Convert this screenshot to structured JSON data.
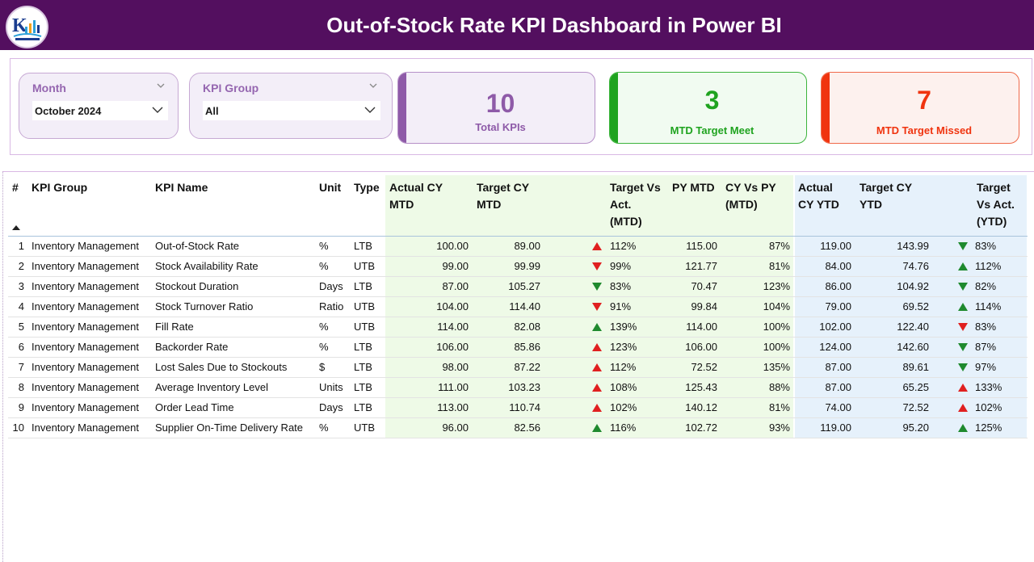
{
  "header": {
    "title": "Out-of-Stock Rate KPI Dashboard in Power BI",
    "logo_icon": "company-logo-icon",
    "color": "#530f5f"
  },
  "filters": {
    "month": {
      "label": "Month",
      "value": "October 2024"
    },
    "kpi_group": {
      "label": "KPI Group",
      "value": "All"
    }
  },
  "cards": {
    "total": {
      "value": "10",
      "label": "Total KPIs",
      "color": "#8e5aa8"
    },
    "met": {
      "value": "3",
      "label": "MTD Target Meet",
      "color": "#1fa31f"
    },
    "missed": {
      "value": "7",
      "label": "MTD Target Missed",
      "color": "#f0340f"
    }
  },
  "table": {
    "headers": {
      "num": "#",
      "kpi_group": "KPI Group",
      "kpi_name": "KPI Name",
      "unit": "Unit",
      "type": "Type",
      "actual_mtd_1": "Actual CY",
      "actual_mtd_2": "MTD",
      "target_mtd_1": "Target CY",
      "target_mtd_2": "MTD",
      "tva_mtd_1": "Target Vs",
      "tva_mtd_2": "Act.",
      "tva_mtd_3": "(MTD)",
      "py_mtd": "PY MTD",
      "cy_py_1": "CY Vs PY",
      "cy_py_2": "(MTD)",
      "actual_ytd_1": "Actual",
      "actual_ytd_2": "CY YTD",
      "target_ytd_1": "Target CY",
      "target_ytd_2": "YTD",
      "tva_ytd_1": "Target",
      "tva_ytd_2": "Vs Act.",
      "tva_ytd_3": "(YTD)"
    },
    "rows": [
      {
        "num": "1",
        "group": "Inventory Management",
        "name": "Out-of-Stock Rate",
        "unit": "%",
        "type": "LTB",
        "actual_mtd": "100.00",
        "target_mtd": "89.00",
        "mtd_icon": "up-red",
        "tva_mtd": "112%",
        "py_mtd": "115.00",
        "cy_vs_py": "87%",
        "actual_ytd": "119.00",
        "target_ytd": "143.99",
        "ytd_icon": "down-green",
        "tva_ytd": "83%"
      },
      {
        "num": "2",
        "group": "Inventory Management",
        "name": "Stock Availability Rate",
        "unit": "%",
        "type": "UTB",
        "actual_mtd": "99.00",
        "target_mtd": "99.99",
        "mtd_icon": "down-red",
        "tva_mtd": "99%",
        "py_mtd": "121.77",
        "cy_vs_py": "81%",
        "actual_ytd": "84.00",
        "target_ytd": "74.76",
        "ytd_icon": "up-green",
        "tva_ytd": "112%"
      },
      {
        "num": "3",
        "group": "Inventory Management",
        "name": "Stockout Duration",
        "unit": "Days",
        "type": "LTB",
        "actual_mtd": "87.00",
        "target_mtd": "105.27",
        "mtd_icon": "down-green",
        "tva_mtd": "83%",
        "py_mtd": "70.47",
        "cy_vs_py": "123%",
        "actual_ytd": "86.00",
        "target_ytd": "104.92",
        "ytd_icon": "down-green",
        "tva_ytd": "82%"
      },
      {
        "num": "4",
        "group": "Inventory Management",
        "name": "Stock Turnover Ratio",
        "unit": "Ratio",
        "type": "UTB",
        "actual_mtd": "104.00",
        "target_mtd": "114.40",
        "mtd_icon": "down-red",
        "tva_mtd": "91%",
        "py_mtd": "99.84",
        "cy_vs_py": "104%",
        "actual_ytd": "79.00",
        "target_ytd": "69.52",
        "ytd_icon": "up-green",
        "tva_ytd": "114%"
      },
      {
        "num": "5",
        "group": "Inventory Management",
        "name": "Fill Rate",
        "unit": "%",
        "type": "UTB",
        "actual_mtd": "114.00",
        "target_mtd": "82.08",
        "mtd_icon": "up-green",
        "tva_mtd": "139%",
        "py_mtd": "114.00",
        "cy_vs_py": "100%",
        "actual_ytd": "102.00",
        "target_ytd": "122.40",
        "ytd_icon": "down-red",
        "tva_ytd": "83%"
      },
      {
        "num": "6",
        "group": "Inventory Management",
        "name": "Backorder Rate",
        "unit": "%",
        "type": "LTB",
        "actual_mtd": "106.00",
        "target_mtd": "85.86",
        "mtd_icon": "up-red",
        "tva_mtd": "123%",
        "py_mtd": "106.00",
        "cy_vs_py": "100%",
        "actual_ytd": "124.00",
        "target_ytd": "142.60",
        "ytd_icon": "down-green",
        "tva_ytd": "87%"
      },
      {
        "num": "7",
        "group": "Inventory Management",
        "name": "Lost Sales Due to Stockouts",
        "unit": "$",
        "type": "LTB",
        "actual_mtd": "98.00",
        "target_mtd": "87.22",
        "mtd_icon": "up-red",
        "tva_mtd": "112%",
        "py_mtd": "72.52",
        "cy_vs_py": "135%",
        "actual_ytd": "87.00",
        "target_ytd": "89.61",
        "ytd_icon": "down-green",
        "tva_ytd": "97%"
      },
      {
        "num": "8",
        "group": "Inventory Management",
        "name": "Average Inventory Level",
        "unit": "Units",
        "type": "LTB",
        "actual_mtd": "111.00",
        "target_mtd": "103.23",
        "mtd_icon": "up-red",
        "tva_mtd": "108%",
        "py_mtd": "125.43",
        "cy_vs_py": "88%",
        "actual_ytd": "87.00",
        "target_ytd": "65.25",
        "ytd_icon": "up-red",
        "tva_ytd": "133%"
      },
      {
        "num": "9",
        "group": "Inventory Management",
        "name": "Order Lead Time",
        "unit": "Days",
        "type": "LTB",
        "actual_mtd": "113.00",
        "target_mtd": "110.74",
        "mtd_icon": "up-red",
        "tva_mtd": "102%",
        "py_mtd": "140.12",
        "cy_vs_py": "81%",
        "actual_ytd": "74.00",
        "target_ytd": "72.52",
        "ytd_icon": "up-red",
        "tva_ytd": "102%"
      },
      {
        "num": "10",
        "group": "Inventory Management",
        "name": "Supplier On-Time Delivery Rate",
        "unit": "%",
        "type": "UTB",
        "actual_mtd": "96.00",
        "target_mtd": "82.56",
        "mtd_icon": "up-green",
        "tva_mtd": "116%",
        "py_mtd": "102.72",
        "cy_vs_py": "93%",
        "actual_ytd": "119.00",
        "target_ytd": "95.20",
        "ytd_icon": "up-green",
        "tva_ytd": "125%"
      }
    ]
  }
}
